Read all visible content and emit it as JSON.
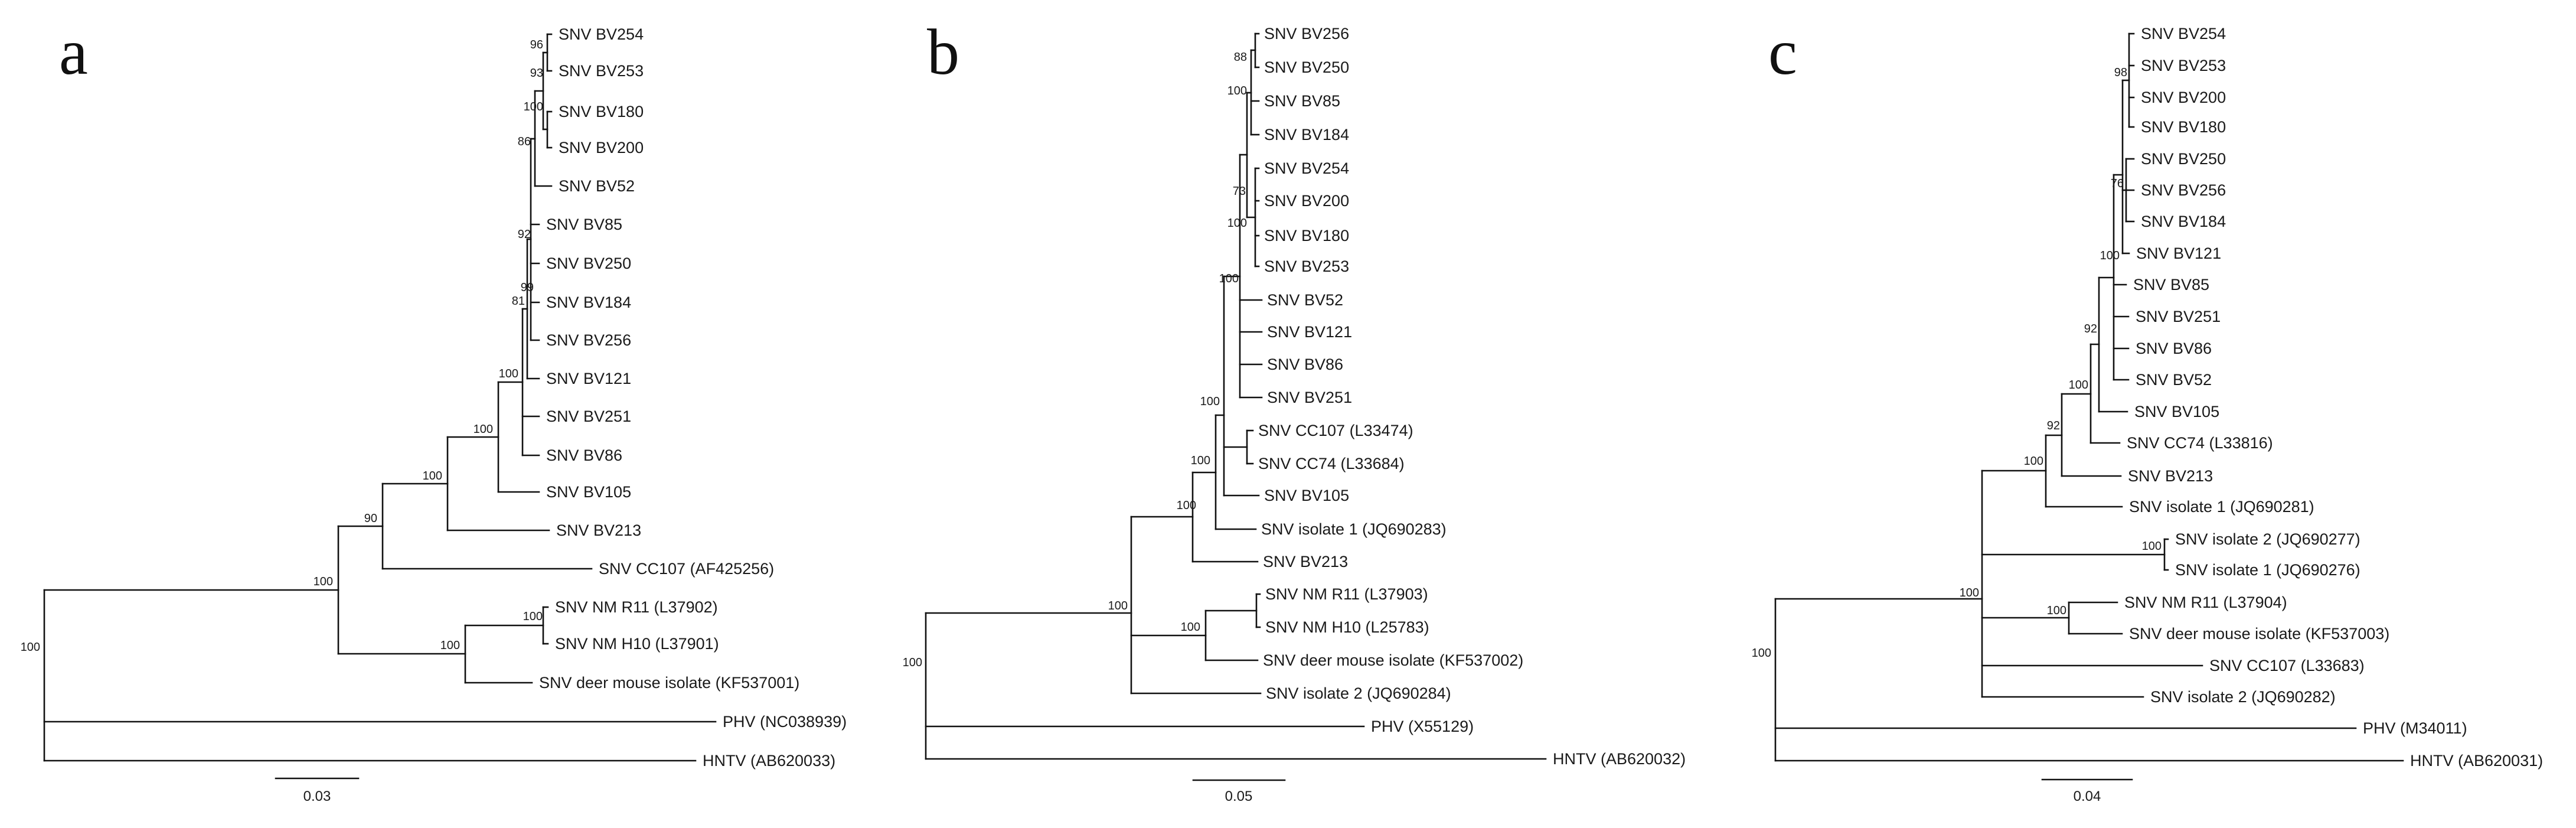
{
  "figure": {
    "panels": [
      {
        "label": "a",
        "scale_bar": "0.03",
        "root_support": "100",
        "tips": [
          {
            "label": "SNV BV254"
          },
          {
            "label": "SNV BV253"
          },
          {
            "label": "SNV BV180"
          },
          {
            "label": "SNV BV200"
          },
          {
            "label": "SNV BV52"
          },
          {
            "label": "SNV BV85"
          },
          {
            "label": "SNV BV250"
          },
          {
            "label": "SNV BV184"
          },
          {
            "label": "SNV BV256"
          },
          {
            "label": "SNV BV121"
          },
          {
            "label": "SNV BV251"
          },
          {
            "label": "SNV BV86"
          },
          {
            "label": "SNV BV105"
          },
          {
            "label": "SNV BV213"
          },
          {
            "label": "SNV CC107 (AF425256)"
          },
          {
            "label": "SNV NM R11 (L37902)"
          },
          {
            "label": "SNV NM H10 (L37901)"
          },
          {
            "label": "SNV deer mouse isolate (KF537001)"
          },
          {
            "label": "PHV (NC038939)"
          },
          {
            "label": "HNTV (AB620033)"
          }
        ],
        "support_values": [
          "96",
          "93",
          "100",
          "86",
          "92",
          "99",
          "81",
          "100",
          "100",
          "100",
          "90",
          "100",
          "100",
          "100"
        ]
      },
      {
        "label": "b",
        "scale_bar": "0.05",
        "root_support": "100",
        "tips": [
          {
            "label": "SNV BV256"
          },
          {
            "label": "SNV BV250"
          },
          {
            "label": "SNV BV85"
          },
          {
            "label": "SNV BV184"
          },
          {
            "label": "SNV BV254"
          },
          {
            "label": "SNV BV200"
          },
          {
            "label": "SNV BV180"
          },
          {
            "label": "SNV BV253"
          },
          {
            "label": "SNV BV52"
          },
          {
            "label": "SNV BV121"
          },
          {
            "label": "SNV BV86"
          },
          {
            "label": "SNV BV251"
          },
          {
            "label": "SNV CC107 (L33474)"
          },
          {
            "label": "SNV CC74 (L33684)"
          },
          {
            "label": "SNV BV105"
          },
          {
            "label": "SNV isolate 1 (JQ690283)"
          },
          {
            "label": "SNV BV213"
          },
          {
            "label": "SNV NM R11 (L37903)"
          },
          {
            "label": "SNV NM H10 (L25783)"
          },
          {
            "label": "SNV deer mouse isolate (KF537002)"
          },
          {
            "label": "SNV isolate 2 (JQ690284)"
          },
          {
            "label": "PHV (X55129)"
          },
          {
            "label": "HNTV (AB620032)"
          }
        ],
        "support_values": [
          "88",
          "100",
          "73",
          "100",
          "100",
          "100",
          "100",
          "100",
          "100",
          "100"
        ]
      },
      {
        "label": "c",
        "scale_bar": "0.04",
        "root_support": "100",
        "tips": [
          {
            "label": "SNV BV254"
          },
          {
            "label": "SNV BV253"
          },
          {
            "label": "SNV BV200"
          },
          {
            "label": "SNV BV180"
          },
          {
            "label": "SNV BV250"
          },
          {
            "label": "SNV BV256"
          },
          {
            "label": "SNV BV184"
          },
          {
            "label": "SNV BV121"
          },
          {
            "label": "SNV BV85"
          },
          {
            "label": "SNV BV251"
          },
          {
            "label": "SNV BV86"
          },
          {
            "label": "SNV BV52"
          },
          {
            "label": "SNV BV105"
          },
          {
            "label": "SNV CC74 (L33816)"
          },
          {
            "label": "SNV BV213"
          },
          {
            "label": "SNV isolate 1 (JQ690281)"
          },
          {
            "label": "SNV isolate 2 (JQ690277)"
          },
          {
            "label": "SNV isolate 1 (JQ690276)"
          },
          {
            "label": "SNV NM R11 (L37904)"
          },
          {
            "label": "SNV deer mouse isolate (KF537003)"
          },
          {
            "label": "SNV CC107 (L33683)"
          },
          {
            "label": "SNV isolate 2 (JQ690282)"
          },
          {
            "label": "PHV (M34011)"
          },
          {
            "label": "HNTV (AB620031)"
          }
        ],
        "support_values": [
          "98",
          "76",
          "100",
          "92",
          "100",
          "92",
          "100",
          "100",
          "100",
          "100"
        ]
      }
    ]
  }
}
